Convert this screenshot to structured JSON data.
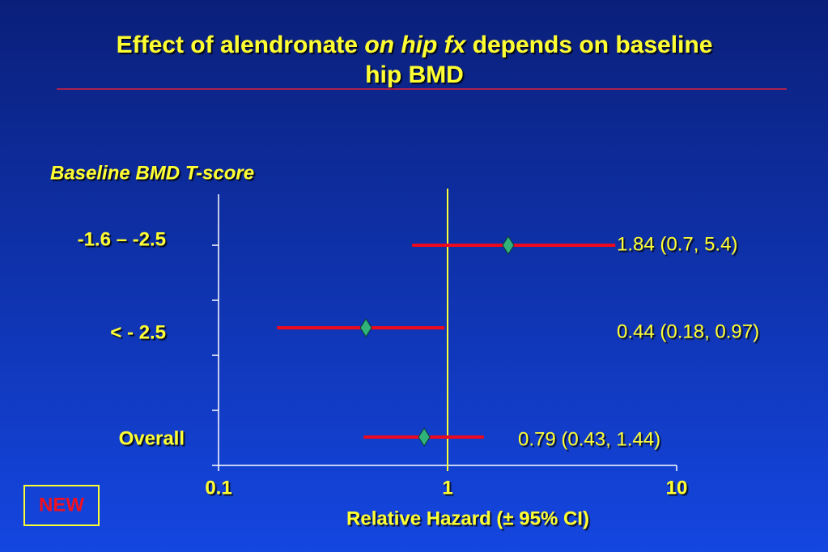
{
  "chart_data": {
    "type": "forest",
    "title": [
      "Effect of alendronate",
      "on hip fx",
      "depends on baseline",
      "hip BMD"
    ],
    "y_label": "Baseline BMD T-score",
    "x_label": "Relative Hazard (± 95% CI)",
    "categories": [
      "-1.6 – -2.5",
      "< - 2.5",
      "Overall"
    ],
    "series": [
      {
        "color": "#ee0a1e",
        "values": [
          1.84,
          0.44,
          0.79
        ],
        "ci_low": [
          0.7,
          0.18,
          0.43
        ],
        "ci_high": [
          5.4,
          0.97,
          1.44
        ],
        "value_labels": [
          "1.84  (0.7, 5.4)",
          "0.44 (0.18, 0.97)",
          "0.79  (0.43, 1.44)"
        ]
      }
    ],
    "xlim": [
      0.1,
      10
    ],
    "xticks": [
      0.1,
      1,
      10
    ],
    "xscale": "log",
    "reference_line": 1,
    "badge": "NEW"
  }
}
